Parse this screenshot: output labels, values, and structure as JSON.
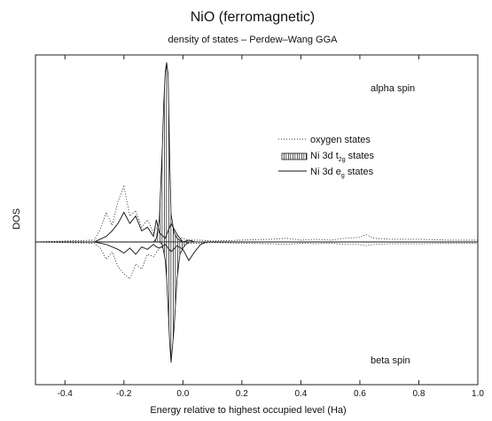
{
  "chart_data": {
    "type": "line",
    "title": "NiO (ferromagnetic)",
    "subtitle": "density of states – Perdew–Wang GGA",
    "xlabel": "Energy relative to highest occupied level (Ha)",
    "ylabel": "DOS",
    "xlim": [
      -0.5,
      1.0
    ],
    "ylim": [
      -1,
      1
    ],
    "xticks": [
      -0.4,
      -0.2,
      0.0,
      0.2,
      0.4,
      0.6,
      0.8,
      1.0
    ],
    "xtick_labels": [
      "-0.4",
      "-0.2",
      "0.0",
      "0.2",
      "0.4",
      "0.6",
      "0.8",
      "1.0"
    ],
    "grid": false,
    "legend_position": "center-right",
    "annotations": {
      "alpha": "alpha spin",
      "beta": "beta spin"
    },
    "legend": [
      {
        "label": "oxygen states",
        "style": "dotted"
      },
      {
        "label_main": "Ni 3d t",
        "label_sub": "2g",
        "label_tail": " states",
        "style": "hatched"
      },
      {
        "label_main": "Ni 3d e",
        "label_sub": "g",
        "label_tail": " states",
        "style": "solid"
      }
    ],
    "series": [
      {
        "style": "dotted",
        "x": [
          -0.5,
          -0.3,
          -0.28,
          -0.26,
          -0.24,
          -0.22,
          -0.2,
          -0.18,
          -0.16,
          -0.14,
          -0.12,
          -0.1,
          -0.08,
          -0.06,
          -0.04,
          -0.02,
          0.0,
          0.02,
          0.06,
          0.1,
          0.2,
          0.3,
          0.35,
          0.4,
          0.45,
          0.5,
          0.55,
          0.6,
          0.62,
          0.65,
          0.7,
          0.8,
          0.9,
          1.0
        ],
        "alpha": [
          0,
          0.01,
          0.07,
          0.16,
          0.09,
          0.22,
          0.3,
          0.14,
          0.17,
          0.08,
          0.12,
          0.05,
          0.1,
          0.03,
          0.02,
          0.03,
          0.02,
          0.01,
          0.01,
          0.005,
          0.01,
          0.015,
          0.02,
          0.01,
          0.015,
          0.01,
          0.02,
          0.025,
          0.04,
          0.02,
          0.015,
          0.015,
          0.01,
          0.01
        ],
        "beta": [
          0,
          -0.01,
          -0.05,
          -0.14,
          -0.08,
          -0.2,
          -0.26,
          -0.3,
          -0.18,
          -0.22,
          -0.1,
          -0.12,
          -0.05,
          -0.04,
          -0.03,
          -0.02,
          -0.02,
          -0.01,
          -0.01,
          -0.005,
          -0.01,
          -0.015,
          -0.02,
          -0.01,
          -0.015,
          -0.01,
          -0.02,
          -0.02,
          -0.03,
          -0.02,
          -0.015,
          -0.015,
          -0.01,
          -0.01
        ]
      },
      {
        "style": "hatched",
        "x": [
          -0.1,
          -0.09,
          -0.08,
          -0.07,
          -0.065,
          -0.06,
          -0.055,
          -0.05,
          -0.045,
          -0.04,
          -0.03,
          -0.02,
          -0.01,
          0.0,
          0.01,
          0.02
        ],
        "alpha": [
          0,
          0.02,
          0.12,
          0.5,
          0.75,
          0.92,
          0.97,
          0.9,
          0.45,
          0.15,
          0.05,
          0.02,
          0.01,
          0.0,
          0.0,
          0.0
        ],
        "beta": [
          0,
          0,
          0,
          -0.02,
          -0.08,
          -0.15,
          -0.3,
          -0.55,
          -0.82,
          -0.98,
          -0.7,
          -0.3,
          -0.1,
          -0.05,
          -0.02,
          0.0
        ]
      },
      {
        "style": "solid",
        "x": [
          -0.3,
          -0.26,
          -0.24,
          -0.22,
          -0.2,
          -0.18,
          -0.16,
          -0.14,
          -0.12,
          -0.1,
          -0.09,
          -0.08,
          -0.06,
          -0.04,
          -0.02,
          0.0,
          0.02,
          0.04,
          0.06,
          0.08
        ],
        "alpha": [
          0,
          0.03,
          0.06,
          0.1,
          0.16,
          0.1,
          0.14,
          0.06,
          0.08,
          0.03,
          0.12,
          0.05,
          0.02,
          0.1,
          0.04,
          0.0,
          0.01,
          0.0,
          0.0,
          0.0
        ],
        "beta": [
          0,
          -0.02,
          -0.04,
          -0.06,
          -0.09,
          -0.05,
          -0.1,
          -0.04,
          -0.06,
          -0.02,
          -0.04,
          -0.05,
          -0.02,
          -0.08,
          -0.03,
          -0.06,
          -0.15,
          -0.08,
          -0.02,
          0.0
        ]
      }
    ]
  }
}
